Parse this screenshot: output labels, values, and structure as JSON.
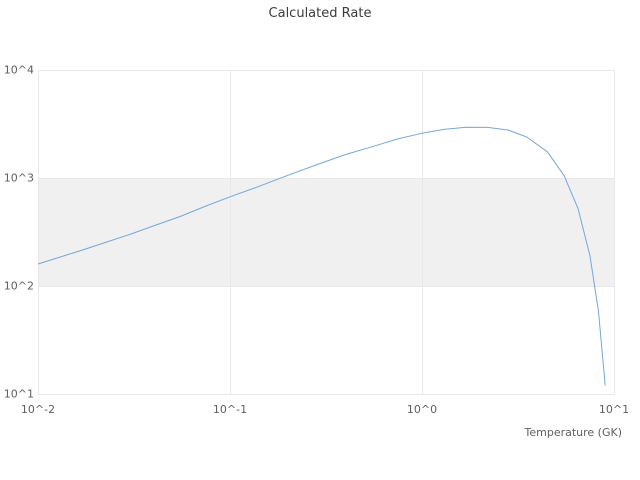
{
  "chart_data": {
    "type": "line",
    "title": "Calculated Rate",
    "xlabel": "Temperature (GK)",
    "ylabel": "",
    "x_scale": "log",
    "y_scale": "log",
    "xlim": [
      0.01,
      10
    ],
    "ylim": [
      10,
      10000
    ],
    "grid": true,
    "legend": "none",
    "x_ticks": [
      {
        "value": 0.01,
        "label": "10^-2"
      },
      {
        "value": 0.1,
        "label": "10^-1"
      },
      {
        "value": 1,
        "label": "10^0"
      },
      {
        "value": 10,
        "label": "10^1"
      }
    ],
    "y_ticks": [
      {
        "value": 10,
        "label": "10^1"
      },
      {
        "value": 100,
        "label": "10^2"
      },
      {
        "value": 1000,
        "label": "10^3"
      },
      {
        "value": 10000,
        "label": "10^4"
      }
    ],
    "band": {
      "from": 100,
      "to": 1000,
      "color": "#f0f0f0"
    },
    "colors": {
      "line": "#74a7d8",
      "grid": "#e8e8e8",
      "tick_text": "#5f5f5f",
      "title_text": "#3c3c3c",
      "background": "#ffffff"
    },
    "series": [
      {
        "name": "Calculated Rate",
        "x": [
          0.01,
          0.013,
          0.017,
          0.022,
          0.03,
          0.04,
          0.055,
          0.075,
          0.1,
          0.14,
          0.2,
          0.28,
          0.4,
          0.55,
          0.75,
          1.0,
          1.3,
          1.7,
          2.2,
          2.8,
          3.5,
          4.5,
          5.5,
          6.5,
          7.5,
          8.3,
          9.0
        ],
        "y": [
          160,
          185,
          215,
          250,
          300,
          360,
          440,
          550,
          670,
          830,
          1060,
          1320,
          1650,
          1950,
          2300,
          2600,
          2820,
          2950,
          2940,
          2780,
          2400,
          1750,
          1050,
          520,
          190,
          58,
          12
        ]
      }
    ]
  }
}
